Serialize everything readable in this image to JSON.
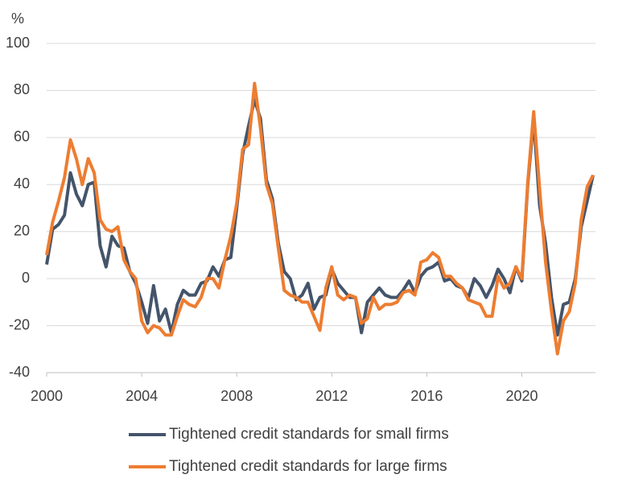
{
  "chart_data": {
    "type": "line",
    "y_label": "%",
    "x": [
      2000,
      2000.25,
      2000.5,
      2000.75,
      2001,
      2001.25,
      2001.5,
      2001.75,
      2002,
      2002.25,
      2002.5,
      2002.75,
      2003,
      2003.25,
      2003.5,
      2003.75,
      2004,
      2004.25,
      2004.5,
      2004.75,
      2005,
      2005.25,
      2005.5,
      2005.75,
      2006,
      2006.25,
      2006.5,
      2006.75,
      2007,
      2007.25,
      2007.5,
      2007.75,
      2008,
      2008.25,
      2008.5,
      2008.75,
      2009,
      2009.25,
      2009.5,
      2009.75,
      2010,
      2010.25,
      2010.5,
      2010.75,
      2011,
      2011.25,
      2011.5,
      2011.75,
      2012,
      2012.25,
      2012.5,
      2012.75,
      2013,
      2013.25,
      2013.5,
      2013.75,
      2014,
      2014.25,
      2014.5,
      2014.75,
      2015,
      2015.25,
      2015.5,
      2015.75,
      2016,
      2016.25,
      2016.5,
      2016.75,
      2017,
      2017.25,
      2017.5,
      2017.75,
      2018,
      2018.25,
      2018.5,
      2018.75,
      2019,
      2019.25,
      2019.5,
      2019.75,
      2020,
      2020.25,
      2020.5,
      2020.75,
      2021,
      2021.25,
      2021.5,
      2021.75,
      2022,
      2022.25,
      2022.5,
      2022.75,
      2023
    ],
    "series": [
      {
        "name": "Tightened credit standards for small firms",
        "color": "#44546a",
        "values": [
          6,
          21,
          23,
          27,
          45,
          36,
          31,
          40,
          41,
          14,
          5,
          18,
          14,
          13,
          3,
          -2,
          -10,
          -19,
          -3,
          -18,
          -13,
          -23,
          -11,
          -5,
          -7,
          -7,
          -2,
          -1,
          5,
          1,
          8,
          9,
          30,
          53,
          65,
          76,
          68,
          42,
          34,
          15,
          3,
          0,
          -9,
          -7,
          -2,
          -13,
          -8,
          -7,
          4,
          -2,
          -5,
          -8,
          -8,
          -23,
          -10,
          -7,
          -4,
          -7,
          -8,
          -8,
          -5,
          -1,
          -6,
          1,
          4,
          5,
          7,
          -1,
          0,
          -3,
          -4,
          -8,
          0,
          -3,
          -8,
          -3,
          4,
          0,
          -6,
          5,
          -1,
          40,
          68,
          31,
          15,
          -8,
          -24,
          -11,
          -10,
          0,
          22,
          33,
          44
        ]
      },
      {
        "name": "Tightened credit standards for large firms",
        "color": "#ed7d31",
        "values": [
          10,
          24,
          33,
          43,
          59,
          51,
          40,
          51,
          45,
          25,
          21,
          20,
          22,
          8,
          3,
          0,
          -18,
          -23,
          -20,
          -21,
          -24,
          -24,
          -16,
          -9,
          -11,
          -12,
          -8,
          0,
          0,
          -4,
          8,
          18,
          32,
          55,
          57,
          83,
          64,
          40,
          32,
          13,
          -5,
          -7,
          -8,
          -10,
          -10,
          -16,
          -22,
          -4,
          5,
          -7,
          -9,
          -7,
          -8,
          -19,
          -17,
          -8,
          -13,
          -11,
          -11,
          -10,
          -6,
          -5,
          -7,
          7,
          8,
          11,
          9,
          1,
          1,
          -2,
          -4,
          -9,
          -10,
          -11,
          -16,
          -16,
          1,
          -4,
          -2,
          5,
          0,
          41,
          71,
          38,
          7,
          -14,
          -32,
          -18,
          -14,
          -2,
          25,
          39,
          44
        ]
      }
    ],
    "xlim": [
      2000,
      2023.1
    ],
    "xticks": [
      2000,
      2004,
      2008,
      2012,
      2016,
      2020
    ],
    "ylim": [
      -40,
      100
    ],
    "yticks": [
      -40,
      -20,
      0,
      20,
      40,
      60,
      80,
      100
    ],
    "grid": true
  }
}
